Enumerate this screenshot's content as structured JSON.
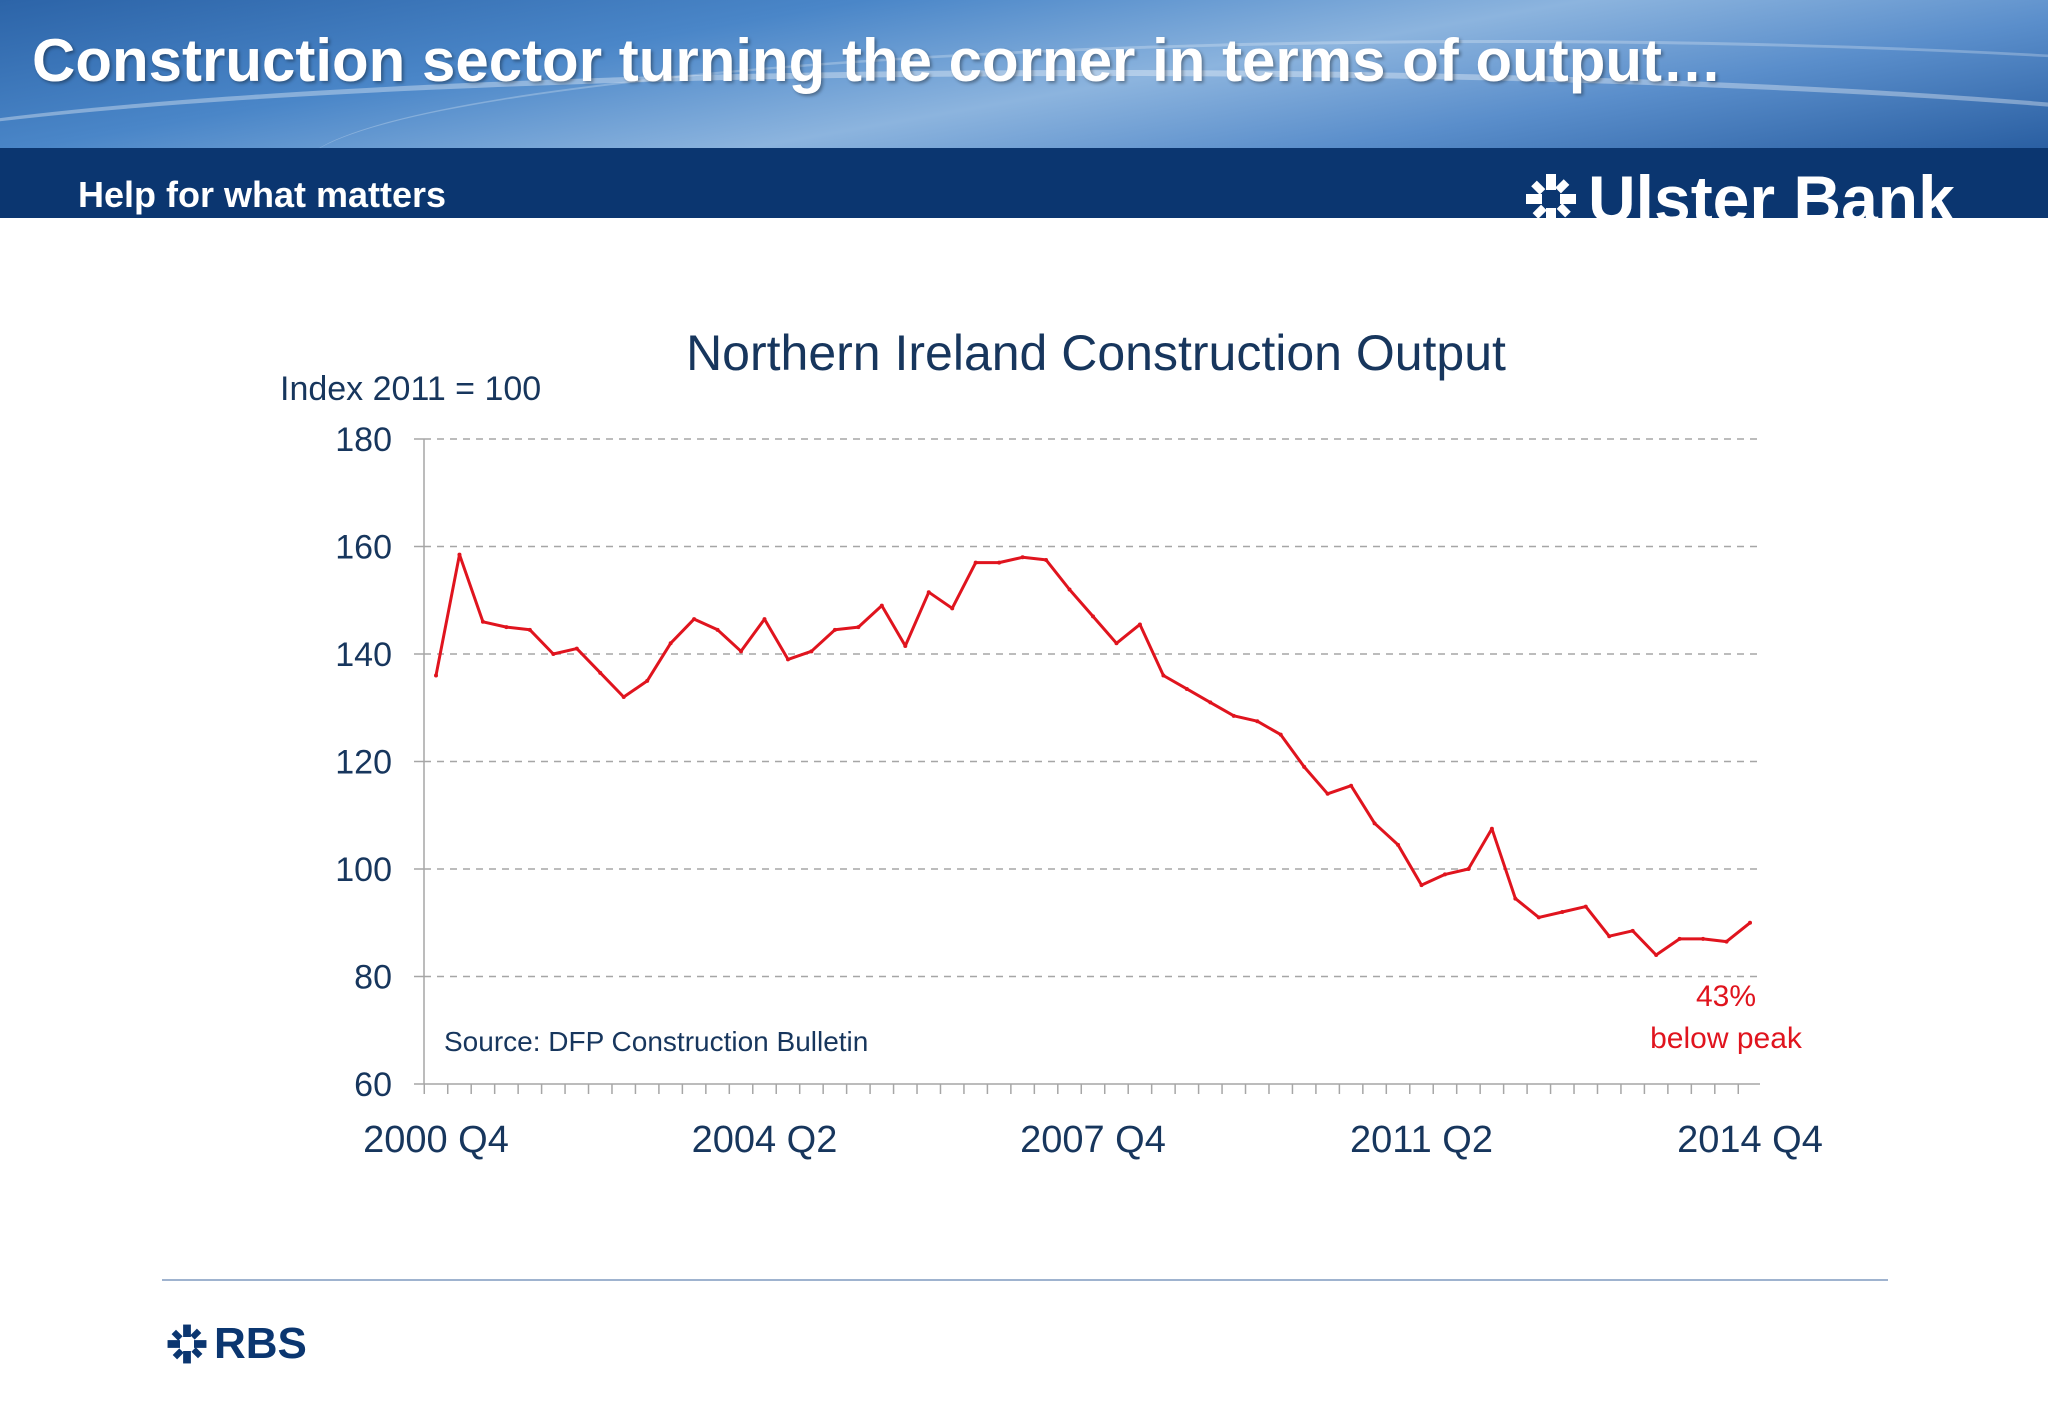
{
  "slide": {
    "title": "Construction sector turning the corner in terms of output…",
    "tagline": "Help for what matters",
    "brand_name": "Ulster Bank",
    "footer_brand": "RBS"
  },
  "colors": {
    "header_band": "#0b3670",
    "series_line": "#e0141e",
    "text_dark": "#17365d",
    "footer_rule": "#9fb3cf"
  },
  "icons": {
    "brand": "daisy-wheel-icon",
    "footer": "daisy-wheel-icon"
  },
  "chart_data": {
    "type": "line",
    "title": "Northern Ireland Construction Output",
    "ylabel": "Index 2011 = 100",
    "xlabel": "",
    "ylim": [
      60,
      180
    ],
    "yticks": [
      60,
      80,
      100,
      120,
      140,
      160,
      180
    ],
    "x_tick_labels": [
      "2000 Q4",
      "2004 Q2",
      "2007 Q4",
      "2011 Q2",
      "2014 Q4"
    ],
    "x_tick_label_index": [
      0,
      14,
      28,
      42,
      56
    ],
    "grid": "horizontal-dashed",
    "source_note": "Source: DFP Construction Bulletin",
    "annotation": {
      "line1": "43%",
      "line2": "below peak"
    },
    "series": [
      {
        "values": [
          136,
          158.5,
          146,
          145,
          144.5,
          140,
          141,
          136.5,
          132,
          135,
          142,
          146.5,
          144.5,
          140.5,
          146.5,
          139,
          140.5,
          144.5,
          145,
          149,
          141.5,
          151.5,
          148.5,
          157,
          157,
          158,
          157.5,
          152,
          147,
          142,
          145.5,
          136,
          133.5,
          131,
          128.5,
          127.5,
          125,
          119,
          114,
          115.5,
          108.5,
          104.5,
          97,
          99,
          100,
          107.5,
          94.5,
          91,
          92,
          93,
          87.5,
          88.5,
          84,
          87,
          87,
          86.5,
          90
        ]
      }
    ]
  }
}
